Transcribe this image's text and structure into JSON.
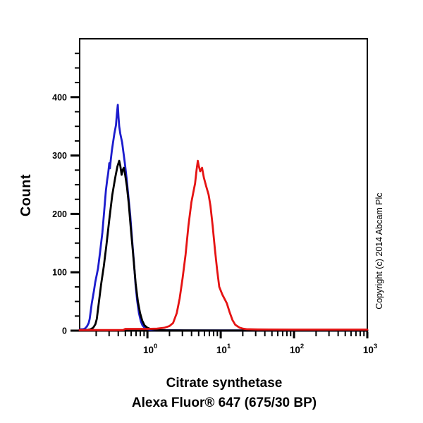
{
  "figure": {
    "ylabel": "Count",
    "title_line1": "Citrate synthetase",
    "title_line2": "Alexa Fluor® 647 (675/30 BP)",
    "copyright": "Copyright (c) 2014 Abcam Plc"
  },
  "chart_data": {
    "type": "line",
    "title": "Citrate synthetase",
    "subtitle": "Alexa Fluor® 647 (675/30 BP)",
    "xlabel": "Alexa Fluor® 647 (675/30 BP)",
    "ylabel": "Count",
    "x_scale": "log10",
    "xlim": [
      0.119,
      1000
    ],
    "ylim": [
      0,
      500
    ],
    "grid": false,
    "legend": "none",
    "axis_color": "#000000",
    "background_color": "#ffffff",
    "y_major_ticks": [
      0,
      100,
      200,
      300,
      400
    ],
    "y_minor_step": 25,
    "x_major_ticks": [
      1,
      10,
      100,
      1000
    ],
    "x_major_labels": [
      {
        "base": "10",
        "exp": "0"
      },
      {
        "base": "10",
        "exp": "1"
      },
      {
        "base": "10",
        "exp": "2"
      },
      {
        "base": "10",
        "exp": "3"
      }
    ],
    "series": [
      {
        "name": "blue-curve",
        "color": "#1c1ccd",
        "peak": {
          "x": 0.39,
          "count": 387
        },
        "points": [
          [
            0.119,
            2
          ],
          [
            0.132,
            2.5
          ],
          [
            0.139,
            3
          ],
          [
            0.149,
            7
          ],
          [
            0.158,
            13
          ],
          [
            0.163,
            20
          ],
          [
            0.174,
            47
          ],
          [
            0.186,
            68
          ],
          [
            0.194,
            83
          ],
          [
            0.204,
            96
          ],
          [
            0.212,
            107
          ],
          [
            0.226,
            135
          ],
          [
            0.243,
            168
          ],
          [
            0.257,
            205
          ],
          [
            0.271,
            240
          ],
          [
            0.282,
            258
          ],
          [
            0.292,
            270
          ],
          [
            0.302,
            287
          ],
          [
            0.308,
            278
          ],
          [
            0.316,
            292
          ],
          [
            0.327,
            308
          ],
          [
            0.339,
            322
          ],
          [
            0.355,
            338
          ],
          [
            0.372,
            352
          ],
          [
            0.382,
            370
          ],
          [
            0.394,
            387
          ],
          [
            0.403,
            366
          ],
          [
            0.412,
            350
          ],
          [
            0.427,
            337
          ],
          [
            0.452,
            322
          ],
          [
            0.468,
            308
          ],
          [
            0.492,
            287
          ],
          [
            0.519,
            262
          ],
          [
            0.55,
            230
          ],
          [
            0.582,
            198
          ],
          [
            0.614,
            160
          ],
          [
            0.653,
            118
          ],
          [
            0.687,
            80
          ],
          [
            0.724,
            52
          ],
          [
            0.767,
            30
          ],
          [
            0.813,
            16
          ],
          [
            0.857,
            9
          ],
          [
            0.912,
            5
          ],
          [
            0.977,
            3
          ],
          [
            1.12,
            1.5
          ],
          [
            1.32,
            1
          ],
          [
            1.78,
            0.7
          ],
          [
            3.16,
            0.5
          ],
          [
            10,
            0.4
          ],
          [
            100,
            0.4
          ],
          [
            1000,
            0.4
          ]
        ]
      },
      {
        "name": "black-curve",
        "color": "#000000",
        "peak": {
          "x": 0.41,
          "count": 291
        },
        "points": [
          [
            0.119,
            1
          ],
          [
            0.151,
            1.2
          ],
          [
            0.166,
            2
          ],
          [
            0.182,
            5
          ],
          [
            0.195,
            11
          ],
          [
            0.204,
            20
          ],
          [
            0.217,
            47
          ],
          [
            0.234,
            80
          ],
          [
            0.254,
            110
          ],
          [
            0.275,
            145
          ],
          [
            0.302,
            190
          ],
          [
            0.331,
            232
          ],
          [
            0.363,
            262
          ],
          [
            0.389,
            281
          ],
          [
            0.412,
            291
          ],
          [
            0.427,
            282
          ],
          [
            0.444,
            267
          ],
          [
            0.462,
            276
          ],
          [
            0.476,
            279
          ],
          [
            0.495,
            268
          ],
          [
            0.525,
            247
          ],
          [
            0.556,
            218
          ],
          [
            0.589,
            180
          ],
          [
            0.631,
            138
          ],
          [
            0.692,
            80
          ],
          [
            0.741,
            50
          ],
          [
            0.794,
            30
          ],
          [
            0.851,
            17
          ],
          [
            0.912,
            9
          ],
          [
            1.0,
            5
          ],
          [
            1.12,
            2.5
          ],
          [
            1.32,
            1.2
          ],
          [
            1.78,
            0.6
          ],
          [
            3.16,
            0.4
          ],
          [
            10,
            0.3
          ],
          [
            100,
            0.3
          ],
          [
            1000,
            0.3
          ]
        ]
      },
      {
        "name": "red-curve",
        "color": "#e51313",
        "peak": {
          "x": 4.9,
          "count": 291
        },
        "points": [
          [
            0.119,
            1
          ],
          [
            0.3,
            1
          ],
          [
            0.42,
            1
          ],
          [
            0.47,
            1.2
          ],
          [
            0.5,
            3
          ],
          [
            0.7,
            3
          ],
          [
            1.0,
            3
          ],
          [
            1.35,
            3.5
          ],
          [
            1.7,
            5
          ],
          [
            2.0,
            8
          ],
          [
            2.24,
            13
          ],
          [
            2.51,
            30
          ],
          [
            2.75,
            55
          ],
          [
            3.02,
            90
          ],
          [
            3.31,
            130
          ],
          [
            3.63,
            180
          ],
          [
            3.98,
            220
          ],
          [
            4.27,
            240
          ],
          [
            4.47,
            252
          ],
          [
            4.68,
            275
          ],
          [
            4.87,
            291
          ],
          [
            5.0,
            283
          ],
          [
            5.25,
            273
          ],
          [
            5.56,
            279
          ],
          [
            5.89,
            262
          ],
          [
            6.31,
            248
          ],
          [
            6.84,
            233
          ],
          [
            7.24,
            214
          ],
          [
            7.76,
            180
          ],
          [
            8.32,
            140
          ],
          [
            8.91,
            105
          ],
          [
            9.55,
            75
          ],
          [
            10.5,
            62
          ],
          [
            12.1,
            47
          ],
          [
            13.2,
            32
          ],
          [
            14.5,
            18
          ],
          [
            15.8,
            10
          ],
          [
            18.2,
            5
          ],
          [
            20,
            3.5
          ],
          [
            22.4,
            2.5
          ],
          [
            31.6,
            2
          ],
          [
            100,
            1.8
          ],
          [
            1000,
            1.8
          ]
        ]
      }
    ]
  }
}
